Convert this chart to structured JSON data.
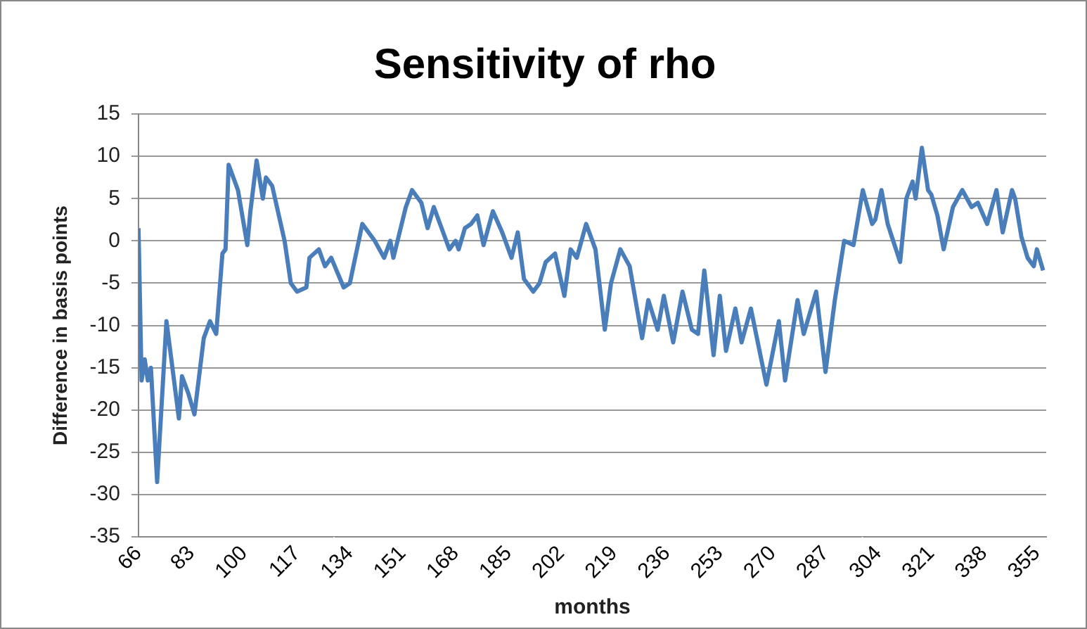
{
  "chart_data": {
    "type": "line",
    "title": "Sensitivity of rho",
    "xlabel": "months",
    "ylabel": "Difference in basis points",
    "x": [
      66,
      67,
      68,
      69,
      70,
      72,
      75,
      79,
      80,
      82,
      84,
      87,
      89,
      91,
      93,
      94,
      95,
      98,
      101,
      102,
      104,
      106,
      107,
      109,
      113,
      115,
      117,
      120,
      121,
      124,
      126,
      128,
      132,
      134,
      138,
      142,
      145,
      147,
      148,
      152,
      154,
      157,
      159,
      161,
      164,
      166,
      168,
      169,
      171,
      173,
      175,
      177,
      180,
      183,
      186,
      188,
      190,
      193,
      195,
      197,
      200,
      203,
      205,
      207,
      210,
      211,
      213,
      216,
      218,
      221,
      224,
      228,
      230,
      233,
      235,
      238,
      241,
      244,
      246,
      248,
      251,
      253,
      255,
      258,
      260,
      263,
      268,
      272,
      274,
      278,
      280,
      284,
      287,
      290,
      293,
      296,
      299,
      302,
      303,
      305,
      307,
      311,
      313,
      315,
      316,
      318,
      320,
      321,
      323,
      325,
      328,
      331,
      334,
      336,
      339,
      342,
      344,
      347,
      348,
      350,
      352,
      354,
      355,
      357
    ],
    "series": [
      {
        "color": "#4a7ebb",
        "values": [
          1.5,
          -16.5,
          -14,
          -16.5,
          -15,
          -28.5,
          -9.5,
          -21,
          -16,
          -18,
          -20.5,
          -11.5,
          -9.5,
          -11,
          -1.5,
          -1,
          9,
          6,
          -0.5,
          3.5,
          9.5,
          5,
          7.5,
          6.5,
          0,
          -5,
          -6,
          -5.5,
          -2,
          -1,
          -3,
          -2,
          -5.5,
          -5,
          2,
          0,
          -2,
          0,
          -2,
          4,
          6,
          4.5,
          1.5,
          4,
          1,
          -1,
          0,
          -1,
          1.5,
          2,
          3,
          -0.5,
          3.5,
          1,
          -2,
          1,
          -4.5,
          -6,
          -5,
          -2.5,
          -1.5,
          -6.5,
          -1,
          -2,
          2,
          1,
          -1,
          -10.5,
          -5,
          -1,
          -3,
          -11.5,
          -7,
          -10.5,
          -6.5,
          -12,
          -6,
          -10.5,
          -11,
          -3.5,
          -13.5,
          -6.5,
          -13,
          -8,
          -12,
          -8,
          -17,
          -9.5,
          -16.5,
          -7,
          -11,
          -6,
          -15.5,
          -7,
          0,
          -0.5,
          6,
          2,
          2.5,
          6,
          2,
          -2.5,
          5,
          7,
          5,
          11,
          6,
          5.5,
          3,
          -1,
          4,
          6,
          4,
          4.5,
          2,
          6,
          1,
          6,
          5,
          0.5,
          -2,
          -3,
          -1,
          -3.5
        ]
      }
    ],
    "xlim": [
      66,
      358
    ],
    "xticks": [
      66,
      83,
      100,
      117,
      134,
      151,
      168,
      185,
      202,
      219,
      236,
      253,
      270,
      287,
      304,
      321,
      338,
      355
    ],
    "ylim": [
      -35,
      15
    ],
    "yticks": [
      15,
      10,
      5,
      0,
      -5,
      -10,
      -15,
      -20,
      -25,
      -30,
      -35
    ],
    "grid": "y",
    "legend": false,
    "marker": "none",
    "line_style": "solid"
  }
}
